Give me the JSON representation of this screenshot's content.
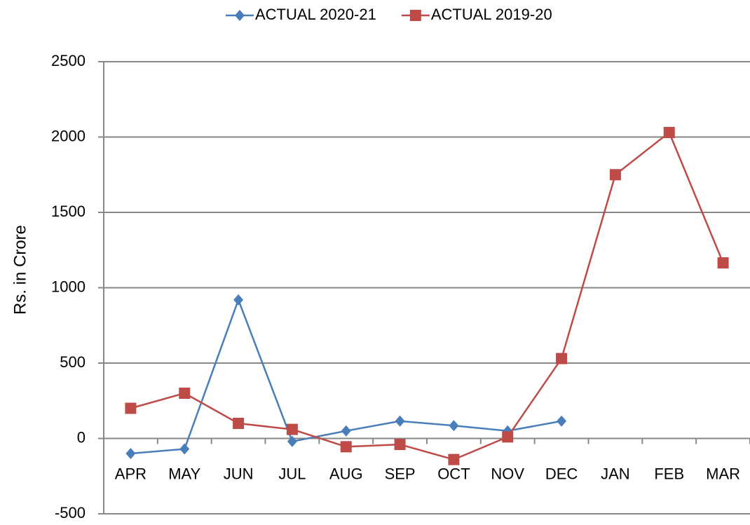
{
  "chart_data": {
    "type": "line",
    "y_label": "Rs. in Crore",
    "categories": [
      "APR",
      "MAY",
      "JUN",
      "JUL",
      "AUG",
      "SEP",
      "OCT",
      "NOV",
      "DEC",
      "JAN",
      "FEB",
      "MAR"
    ],
    "series": [
      {
        "name": "ACTUAL 2020-21",
        "color": "#4a7ebb",
        "marker": "diamond",
        "values": [
          -100,
          -70,
          920,
          -20,
          50,
          115,
          85,
          50,
          115,
          null,
          null,
          null
        ]
      },
      {
        "name": "ACTUAL 2019-20",
        "color": "#be4b48",
        "marker": "square",
        "values": [
          200,
          300,
          100,
          60,
          -55,
          -40,
          -140,
          10,
          530,
          1750,
          2030,
          1165
        ]
      }
    ],
    "ylim": [
      -500,
      2500
    ],
    "yticks": [
      -500,
      0,
      500,
      1000,
      1500,
      2000,
      2500
    ],
    "grid": true,
    "legend": "top"
  }
}
